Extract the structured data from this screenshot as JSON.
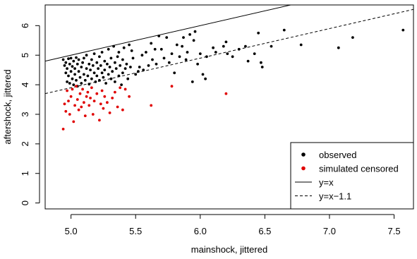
{
  "chart_data": {
    "type": "scatter",
    "xlabel": "mainshock, jittered",
    "ylabel": "aftershock, jittered",
    "xlim": [
      4.8,
      7.65
    ],
    "ylim": [
      -0.2,
      6.7
    ],
    "x_ticks": [
      5.0,
      5.5,
      6.0,
      6.5,
      7.0,
      7.5
    ],
    "x_tick_labels": [
      "5.0",
      "5.5",
      "6.0",
      "6.5",
      "7.0",
      "7.5"
    ],
    "y_ticks": [
      0,
      1,
      2,
      3,
      4,
      5,
      6
    ],
    "y_tick_labels": [
      "0",
      "1",
      "2",
      "3",
      "4",
      "5",
      "6"
    ],
    "legend_position": "bottom-right",
    "legend": [
      {
        "label": "observed",
        "kind": "point",
        "color": "#000000"
      },
      {
        "label": "simulated censored",
        "kind": "point",
        "color": "#e00000"
      },
      {
        "label": "y=x",
        "kind": "line",
        "dash": "solid"
      },
      {
        "label": "y=x−1.1",
        "kind": "line",
        "dash": "dashed"
      }
    ],
    "lines": [
      {
        "name": "y=x",
        "intercept": 0.0,
        "slope": 1.0,
        "dash": "solid"
      },
      {
        "name": "y=x−1.1",
        "intercept": -1.1,
        "slope": 1.0,
        "dash": "dashed"
      }
    ],
    "series": [
      {
        "name": "observed",
        "color": "#000000",
        "points": [
          [
            4.94,
            4.85
          ],
          [
            4.95,
            4.65
          ],
          [
            4.96,
            4.4
          ],
          [
            4.96,
            4.75
          ],
          [
            4.97,
            4.1
          ],
          [
            4.97,
            4.55
          ],
          [
            4.98,
            4.88
          ],
          [
            4.98,
            4.3
          ],
          [
            4.99,
            4.05
          ],
          [
            4.99,
            4.7
          ],
          [
            5.0,
            4.9
          ],
          [
            5.0,
            4.45
          ],
          [
            5.01,
            4.2
          ],
          [
            5.01,
            4.62
          ],
          [
            5.02,
            4.8
          ],
          [
            5.02,
            4.0
          ],
          [
            5.03,
            4.35
          ],
          [
            5.03,
            4.55
          ],
          [
            5.04,
            4.92
          ],
          [
            5.04,
            4.15
          ],
          [
            5.05,
            4.7
          ],
          [
            5.05,
            3.95
          ],
          [
            5.06,
            4.45
          ],
          [
            5.06,
            4.85
          ],
          [
            5.07,
            4.25
          ],
          [
            5.08,
            4.6
          ],
          [
            5.08,
            4.05
          ],
          [
            5.09,
            4.75
          ],
          [
            5.1,
            4.35
          ],
          [
            5.1,
            4.9
          ],
          [
            5.11,
            4.15
          ],
          [
            5.12,
            4.55
          ],
          [
            5.12,
            5.0
          ],
          [
            5.13,
            4.3
          ],
          [
            5.14,
            4.7
          ],
          [
            5.14,
            4.02
          ],
          [
            5.15,
            4.5
          ],
          [
            5.16,
            4.85
          ],
          [
            5.16,
            4.2
          ],
          [
            5.17,
            4.65
          ],
          [
            5.18,
            4.4
          ],
          [
            5.18,
            5.05
          ],
          [
            5.19,
            4.1
          ],
          [
            5.2,
            4.75
          ],
          [
            5.2,
            4.3
          ],
          [
            5.21,
            4.55
          ],
          [
            5.22,
            4.95
          ],
          [
            5.22,
            4.15
          ],
          [
            5.23,
            4.65
          ],
          [
            5.24,
            4.4
          ],
          [
            5.24,
            5.1
          ],
          [
            5.25,
            4.25
          ],
          [
            5.26,
            4.8
          ],
          [
            5.26,
            4.5
          ],
          [
            5.27,
            4.05
          ],
          [
            5.28,
            4.7
          ],
          [
            5.29,
            5.2
          ],
          [
            5.29,
            4.35
          ],
          [
            5.3,
            4.6
          ],
          [
            5.31,
            4.9
          ],
          [
            5.31,
            4.2
          ],
          [
            5.32,
            4.45
          ],
          [
            5.33,
            5.3
          ],
          [
            5.34,
            4.75
          ],
          [
            5.34,
            4.1
          ],
          [
            5.35,
            4.55
          ],
          [
            5.36,
            4.95
          ],
          [
            5.37,
            4.3
          ],
          [
            5.37,
            5.1
          ],
          [
            5.38,
            4.65
          ],
          [
            5.39,
            4.0
          ],
          [
            5.4,
            4.4
          ],
          [
            5.4,
            4.85
          ],
          [
            5.41,
            5.25
          ],
          [
            5.42,
            4.55
          ],
          [
            5.43,
            4.7
          ],
          [
            5.44,
            4.2
          ],
          [
            5.45,
            5.35
          ],
          [
            5.46,
            4.6
          ],
          [
            5.47,
            5.15
          ],
          [
            5.48,
            4.9
          ],
          [
            5.5,
            4.35
          ],
          [
            5.52,
            4.45
          ],
          [
            5.53,
            4.6
          ],
          [
            5.55,
            5.0
          ],
          [
            5.56,
            4.5
          ],
          [
            5.58,
            5.1
          ],
          [
            5.6,
            4.65
          ],
          [
            5.62,
            5.4
          ],
          [
            5.63,
            4.85
          ],
          [
            5.65,
            5.2
          ],
          [
            5.66,
            4.7
          ],
          [
            5.68,
            5.65
          ],
          [
            5.7,
            5.2
          ],
          [
            5.72,
            4.9
          ],
          [
            5.74,
            5.6
          ],
          [
            5.76,
            4.75
          ],
          [
            5.78,
            5.05
          ],
          [
            5.8,
            4.4
          ],
          [
            5.82,
            5.35
          ],
          [
            5.84,
            4.95
          ],
          [
            5.86,
            5.3
          ],
          [
            5.87,
            5.6
          ],
          [
            5.89,
            4.85
          ],
          [
            5.9,
            5.1
          ],
          [
            5.92,
            5.7
          ],
          [
            5.94,
            4.1
          ],
          [
            5.95,
            5.5
          ],
          [
            5.96,
            5.8
          ],
          [
            5.98,
            4.7
          ],
          [
            6.0,
            5.05
          ],
          [
            6.02,
            4.35
          ],
          [
            6.04,
            4.2
          ],
          [
            6.05,
            4.95
          ],
          [
            6.1,
            5.25
          ],
          [
            6.12,
            5.1
          ],
          [
            6.18,
            5.3
          ],
          [
            6.2,
            5.45
          ],
          [
            6.21,
            5.05
          ],
          [
            6.25,
            4.95
          ],
          [
            6.3,
            5.2
          ],
          [
            6.35,
            5.3
          ],
          [
            6.37,
            4.8
          ],
          [
            6.42,
            5.05
          ],
          [
            6.45,
            5.75
          ],
          [
            6.47,
            4.75
          ],
          [
            6.48,
            4.6
          ],
          [
            6.55,
            5.3
          ],
          [
            6.65,
            5.85
          ],
          [
            6.78,
            5.35
          ],
          [
            7.07,
            5.25
          ],
          [
            7.18,
            5.6
          ],
          [
            7.57,
            5.85
          ]
        ]
      },
      {
        "name": "simulated censored",
        "color": "#e00000",
        "points": [
          [
            4.94,
            2.5
          ],
          [
            4.95,
            3.35
          ],
          [
            4.96,
            3.1
          ],
          [
            4.97,
            3.8
          ],
          [
            4.98,
            3.45
          ],
          [
            4.99,
            3.0
          ],
          [
            5.0,
            3.6
          ],
          [
            5.01,
            3.85
          ],
          [
            5.02,
            2.75
          ],
          [
            5.03,
            3.3
          ],
          [
            5.04,
            3.95
          ],
          [
            5.05,
            3.5
          ],
          [
            5.06,
            3.15
          ],
          [
            5.07,
            3.7
          ],
          [
            5.08,
            3.25
          ],
          [
            5.09,
            3.85
          ],
          [
            5.1,
            3.4
          ],
          [
            5.11,
            2.95
          ],
          [
            5.12,
            3.6
          ],
          [
            5.13,
            3.75
          ],
          [
            5.14,
            3.3
          ],
          [
            5.15,
            3.55
          ],
          [
            5.16,
            3.9
          ],
          [
            5.17,
            3.0
          ],
          [
            5.18,
            3.45
          ],
          [
            5.2,
            3.7
          ],
          [
            5.22,
            2.8
          ],
          [
            5.23,
            3.35
          ],
          [
            5.24,
            3.8
          ],
          [
            5.25,
            3.2
          ],
          [
            5.26,
            3.6
          ],
          [
            5.28,
            3.4
          ],
          [
            5.3,
            3.05
          ],
          [
            5.32,
            3.55
          ],
          [
            5.34,
            3.75
          ],
          [
            5.36,
            3.25
          ],
          [
            5.38,
            3.9
          ],
          [
            5.4,
            3.15
          ],
          [
            5.42,
            3.85
          ],
          [
            5.45,
            3.6
          ],
          [
            5.62,
            3.3
          ],
          [
            5.78,
            3.95
          ],
          [
            6.2,
            3.7
          ]
        ]
      }
    ]
  }
}
